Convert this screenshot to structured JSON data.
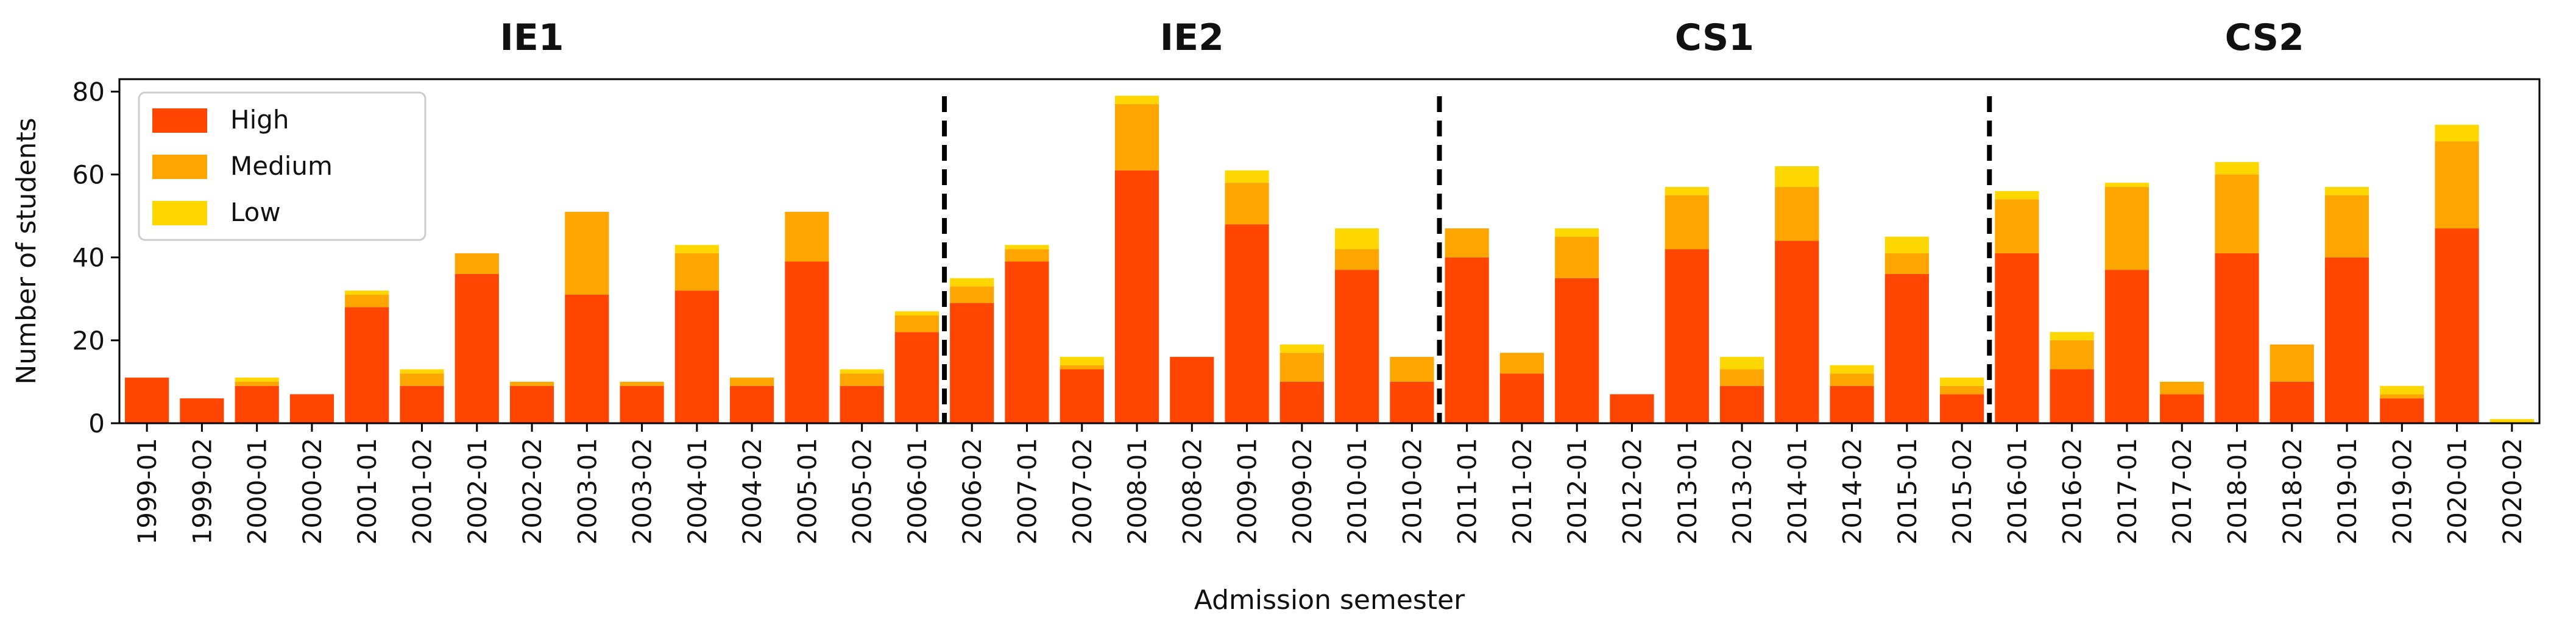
{
  "chart_data": {
    "type": "bar",
    "stacked": true,
    "xlabel": "Admission semester",
    "ylabel": "Number of students",
    "ylim": [
      0,
      83
    ],
    "yticks": [
      0,
      20,
      40,
      60,
      80
    ],
    "grid": false,
    "legend_position": "top-left",
    "categories": [
      "1999-01",
      "1999-02",
      "2000-01",
      "2000-02",
      "2001-01",
      "2001-02",
      "2002-01",
      "2002-02",
      "2003-01",
      "2003-02",
      "2004-01",
      "2004-02",
      "2005-01",
      "2005-02",
      "2006-01",
      "2006-02",
      "2007-01",
      "2007-02",
      "2008-01",
      "2008-02",
      "2009-01",
      "2009-02",
      "2010-01",
      "2010-02",
      "2011-01",
      "2011-02",
      "2012-01",
      "2012-02",
      "2013-01",
      "2013-02",
      "2014-01",
      "2014-02",
      "2015-01",
      "2015-02",
      "2016-01",
      "2016-02",
      "2017-01",
      "2017-02",
      "2018-01",
      "2018-02",
      "2019-01",
      "2019-02",
      "2020-01",
      "2020-02"
    ],
    "series": [
      {
        "name": "High",
        "color": "#ff4500",
        "values": [
          11,
          6,
          9,
          7,
          28,
          9,
          36,
          9,
          31,
          9,
          32,
          9,
          39,
          9,
          22,
          29,
          39,
          13,
          61,
          16,
          48,
          10,
          37,
          10,
          40,
          12,
          35,
          7,
          42,
          9,
          44,
          9,
          36,
          7,
          41,
          13,
          37,
          7,
          41,
          10,
          40,
          6,
          47,
          0
        ]
      },
      {
        "name": "Medium",
        "color": "#ffa500",
        "values": [
          0,
          0,
          1,
          0,
          3,
          3,
          5,
          1,
          20,
          1,
          9,
          2,
          12,
          3,
          4,
          4,
          3,
          1,
          16,
          0,
          10,
          7,
          5,
          6,
          7,
          5,
          10,
          0,
          13,
          4,
          13,
          3,
          5,
          2,
          13,
          7,
          20,
          3,
          19,
          9,
          15,
          1,
          21,
          0
        ]
      },
      {
        "name": "Low",
        "color": "#ffd700",
        "values": [
          0,
          0,
          1,
          0,
          1,
          1,
          0,
          0,
          0,
          0,
          2,
          0,
          0,
          1,
          1,
          2,
          1,
          2,
          2,
          0,
          3,
          2,
          5,
          0,
          0,
          0,
          2,
          0,
          2,
          3,
          5,
          2,
          4,
          2,
          2,
          2,
          1,
          0,
          3,
          0,
          2,
          2,
          4,
          1
        ]
      }
    ],
    "groups": [
      {
        "label": "IE1",
        "start": 0,
        "end": 14
      },
      {
        "label": "IE2",
        "start": 15,
        "end": 23
      },
      {
        "label": "CS1",
        "start": 24,
        "end": 33
      },
      {
        "label": "CS2",
        "start": 34,
        "end": 43
      }
    ],
    "dividers_after": [
      14,
      23,
      33
    ]
  }
}
